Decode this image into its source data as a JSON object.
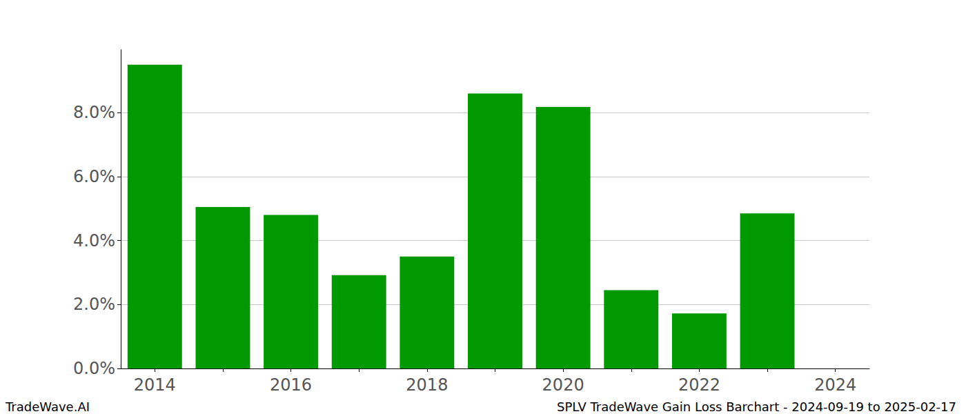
{
  "chart_data": {
    "type": "bar",
    "title": "SPLV TradeWave Gain Loss Barchart - 2024-09-19 to 2025-02-17",
    "annotations": [
      "TradeWave.AI"
    ],
    "categories": [
      "2014",
      null,
      "2016",
      null,
      "2018",
      null,
      "2020",
      null,
      "2022",
      null,
      "2024"
    ],
    "values": [
      9.5,
      5.05,
      4.8,
      2.92,
      3.5,
      8.6,
      8.18,
      2.45,
      1.72,
      4.85,
      0
    ],
    "color": "#009900",
    "ylim": [
      0,
      9.97
    ],
    "yticks": [
      {
        "value": 0,
        "label": "0.0%"
      },
      {
        "value": 2,
        "label": "2.0%"
      },
      {
        "value": 4,
        "label": "4.0%"
      },
      {
        "value": 6,
        "label": "6.0%"
      },
      {
        "value": 8,
        "label": "8.0%"
      }
    ],
    "grid": true
  }
}
